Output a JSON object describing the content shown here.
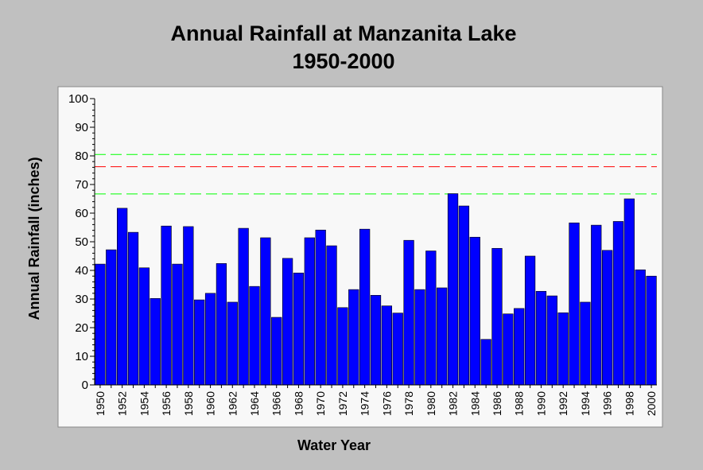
{
  "chart_data": {
    "type": "bar",
    "title_line1": "Annual Rainfall at Manzanita Lake",
    "title_line2": "1950-2000",
    "xlabel": "Water Year",
    "ylabel": "Annual Rainfall (inches)",
    "ylim": [
      0,
      100
    ],
    "y_ticks": [
      0,
      10,
      20,
      30,
      40,
      50,
      60,
      70,
      80,
      90,
      100
    ],
    "x_tick_labels": [
      "1950",
      "1952",
      "1954",
      "1956",
      "1958",
      "1960",
      "1962",
      "1964",
      "1966",
      "1968",
      "1970",
      "1972",
      "1974",
      "1976",
      "1978",
      "1980",
      "1982",
      "1984",
      "1986",
      "1988",
      "1990",
      "1992",
      "1994",
      "1996",
      "1998",
      "2000"
    ],
    "categories": [
      1950,
      1951,
      1952,
      1953,
      1954,
      1955,
      1956,
      1957,
      1958,
      1959,
      1960,
      1961,
      1962,
      1963,
      1964,
      1965,
      1966,
      1967,
      1968,
      1969,
      1970,
      1971,
      1972,
      1973,
      1974,
      1975,
      1976,
      1977,
      1978,
      1979,
      1980,
      1981,
      1982,
      1983,
      1984,
      1985,
      1986,
      1987,
      1988,
      1989,
      1990,
      1991,
      1992,
      1993,
      1994,
      1995,
      1996,
      1997,
      1998,
      1999,
      2000
    ],
    "values": [
      42.2,
      47.2,
      61.7,
      53.3,
      40.9,
      30.2,
      55.5,
      42.2,
      55.3,
      29.7,
      32.0,
      42.4,
      28.9,
      54.7,
      34.4,
      51.4,
      23.6,
      44.2,
      39.1,
      51.4,
      54.1,
      48.6,
      27.0,
      33.3,
      54.4,
      31.3,
      27.6,
      25.1,
      50.5,
      33.3,
      46.8,
      33.9,
      66.8,
      62.5,
      51.6,
      15.9,
      47.7,
      24.8,
      26.7,
      45.0,
      32.7,
      31.1,
      25.2,
      56.6,
      28.9,
      55.8,
      47.0,
      57.1,
      65.0,
      40.2,
      38.0
    ],
    "bar_color": "#0000ff",
    "reference_lines": [
      {
        "value": 80.5,
        "color": "#00ff00",
        "style": "dashed"
      },
      {
        "value": 76.2,
        "color": "#ff0000",
        "style": "dashed"
      },
      {
        "value": 66.7,
        "color": "#00ff00",
        "style": "dashed"
      }
    ],
    "grid": false,
    "background": "#c0c0c0",
    "plot_background": "#f8f8f8"
  }
}
